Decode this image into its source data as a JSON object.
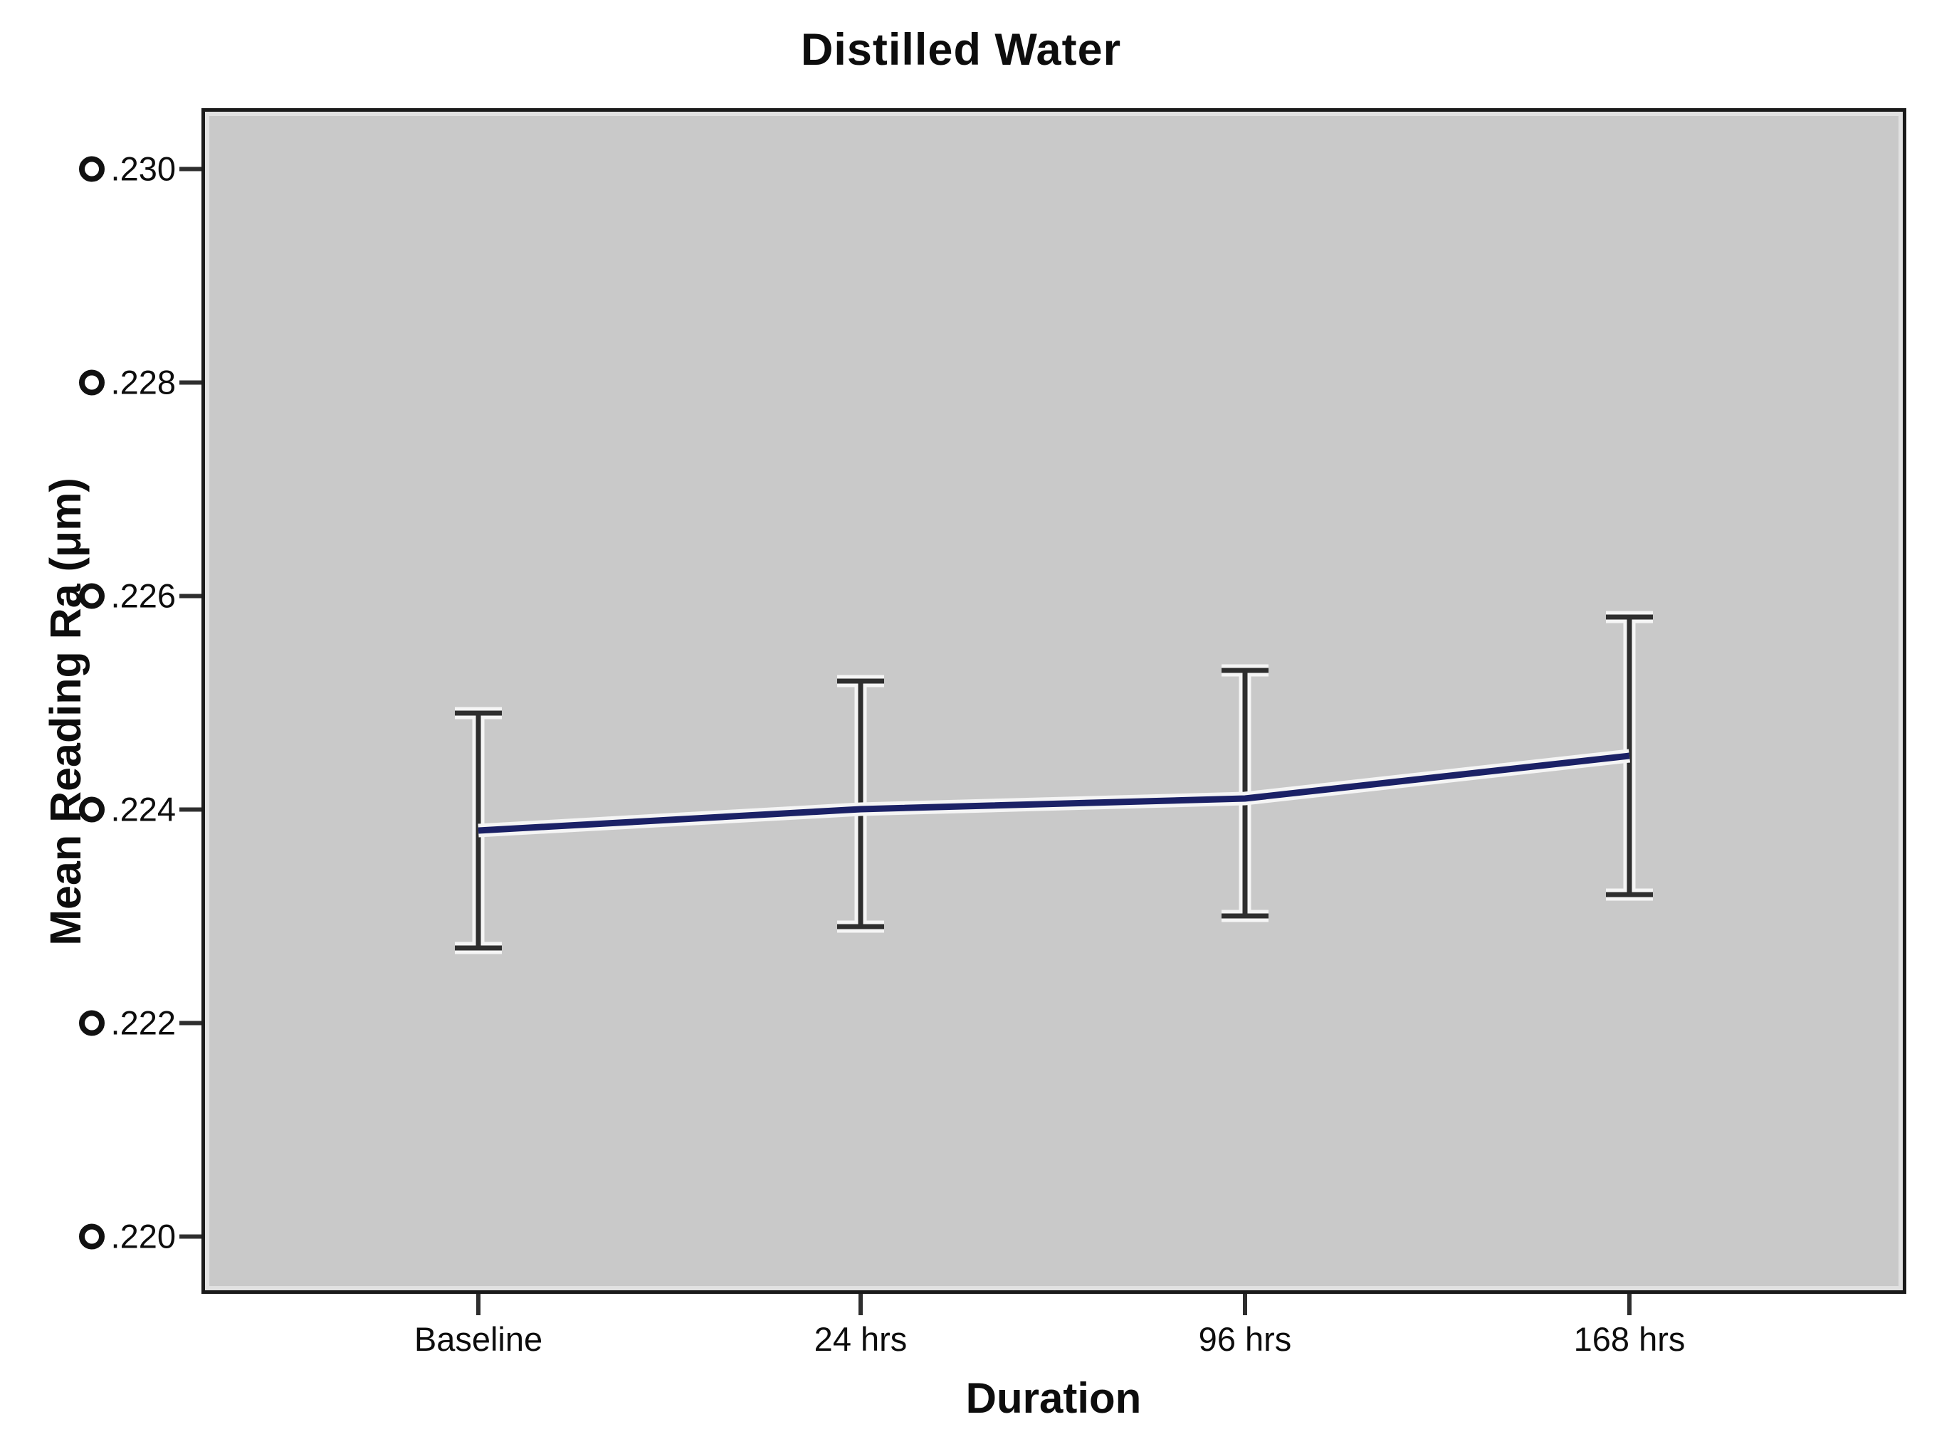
{
  "title": "Distilled Water",
  "yaxis": {
    "title": "Mean Reading Ra (μm)",
    "ticks": [
      {
        "label": ".230"
      },
      {
        "label": ".228"
      },
      {
        "label": ".226"
      },
      {
        "label": ".224"
      },
      {
        "label": ".222"
      },
      {
        "label": ".220"
      }
    ]
  },
  "xaxis": {
    "title": "Duration",
    "ticks": [
      {
        "label": "Baseline"
      },
      {
        "label": "24 hrs"
      },
      {
        "label": "96 hrs"
      },
      {
        "label": "168 hrs"
      }
    ]
  },
  "chart_data": {
    "type": "line",
    "title": "Distilled Water",
    "xlabel": "Duration",
    "ylabel": "Mean Reading Ra (μm)",
    "categories": [
      "Baseline",
      "24 hrs",
      "96 hrs",
      "168 hrs"
    ],
    "series": [
      {
        "name": "Mean Reading Ra (μm)",
        "values": [
          0.2238,
          0.224,
          0.2241,
          0.2245
        ],
        "ci_low": [
          0.2227,
          0.2229,
          0.223,
          0.2232
        ],
        "ci_high": [
          0.2249,
          0.2252,
          0.2253,
          0.2258
        ]
      }
    ],
    "yticks": [
      0.22,
      0.222,
      0.224,
      0.226,
      0.228,
      0.23
    ],
    "ylim": [
      0.2194,
      0.2306
    ],
    "grid": false,
    "legend": "none",
    "error_bars": true,
    "line_color": "#1b2166",
    "errorbar_color": "#2e2e2e",
    "halo_color": "#f5f5f5",
    "plot_bg": "#c9c9c9",
    "outer_bg": "#ffffff"
  }
}
